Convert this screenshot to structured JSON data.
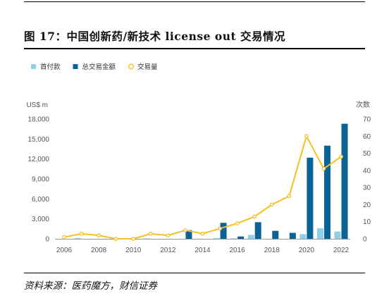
{
  "figure": {
    "title": "图 17：中国创新药/新技术 license out 交易情况",
    "source": "资料来源：医药魔方，财信证券"
  },
  "chart_data": {
    "type": "bar",
    "x": [
      2006,
      2007,
      2008,
      2009,
      2010,
      2011,
      2012,
      2013,
      2014,
      2015,
      2016,
      2017,
      2018,
      2019,
      2020,
      2021,
      2022
    ],
    "x_ticks": [
      "2006",
      "2008",
      "2010",
      "2012",
      "2014",
      "2016",
      "2018",
      "2020",
      "2022"
    ],
    "series": [
      {
        "name": "首付款",
        "type": "bar",
        "axis": "left",
        "color": "#8fd0e8",
        "values": [
          0,
          120,
          0,
          0,
          0,
          60,
          0,
          0,
          30,
          120,
          80,
          600,
          0,
          0,
          700,
          1600,
          1100
        ]
      },
      {
        "name": "总交易金额",
        "type": "bar",
        "axis": "left",
        "color": "#0a6296",
        "values": [
          0,
          0,
          0,
          0,
          0,
          0,
          0,
          1300,
          0,
          2400,
          350,
          2500,
          1200,
          900,
          12200,
          14000,
          17300
        ]
      },
      {
        "name": "交易量",
        "type": "line",
        "axis": "right",
        "color": "#f5c023",
        "values": [
          1,
          3,
          2,
          0,
          0,
          3,
          2,
          5,
          3,
          6,
          9,
          13,
          20,
          25,
          60,
          41,
          48
        ]
      }
    ],
    "y_left": {
      "label": "US$ m",
      "min": 0,
      "max": 18000,
      "ticks": [
        "0",
        "3,000",
        "6,000",
        "9,000",
        "12,000",
        "15,000",
        "18,000"
      ]
    },
    "y_right": {
      "label": "次数",
      "min": 0,
      "max": 70,
      "ticks": [
        "0",
        "10",
        "20",
        "30",
        "40",
        "50",
        "60",
        "70"
      ]
    },
    "legend_position": "top-left",
    "grid": false
  }
}
